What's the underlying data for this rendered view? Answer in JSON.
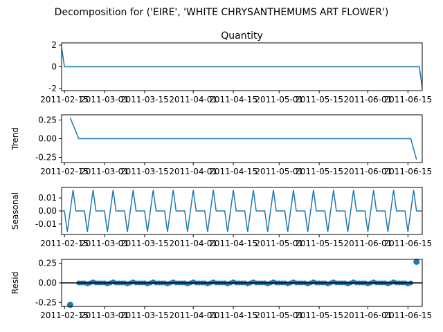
{
  "figure": {
    "suptitle": "Decomposition for ('EIRE', 'WHITE CHRYSANTHEMUMS ART FLOWER')"
  },
  "colors": {
    "line": "#1f77b4",
    "marker": "#1f77b4",
    "axis": "#000000",
    "zero_line": "#000000"
  },
  "chart_data": [
    {
      "name": "observed",
      "type": "line",
      "title": "Quantity",
      "ylabel": "",
      "ylim": [
        -2.2,
        2.2
      ],
      "yticks": [
        2,
        0,
        -2
      ],
      "xlim": [
        "2011-02-14",
        "2011-06-20"
      ],
      "xticks": [
        "2011-02-15",
        "2011-03-01",
        "2011-03-15",
        "2011-04-01",
        "2011-04-15",
        "2011-05-01",
        "2011-05-15",
        "2011-06-01",
        "2011-06-15"
      ],
      "xtick_labels": [
        "2011-02-15",
        "2011-03-01",
        "2011-03-15",
        "2011-04-01",
        "2011-04-15",
        "2011-05-01",
        "2011-05-15",
        "2011-06-01",
        "2011-06-15"
      ],
      "start": "2011-02-14",
      "end": "2011-06-20",
      "first": 1.8,
      "baseline": 0,
      "last": -2.0
    },
    {
      "name": "trend",
      "type": "line",
      "title": "",
      "ylabel": "Trend",
      "ylim": [
        -0.32,
        0.32
      ],
      "yticks": [
        0.25,
        0.0,
        -0.25
      ],
      "ytick_labels": [
        "0.25",
        "0.00",
        "-0.25"
      ],
      "xlim": [
        "2011-02-14",
        "2011-06-20"
      ],
      "xticks": [
        "2011-02-15",
        "2011-03-01",
        "2011-03-15",
        "2011-04-01",
        "2011-04-15",
        "2011-05-01",
        "2011-05-15",
        "2011-06-01",
        "2011-06-15"
      ],
      "xtick_labels": [
        "2011-02-15",
        "2011-03-01",
        "2011-03-15",
        "2011-04-01",
        "2011-04-15",
        "2011-05-01",
        "2011-05-15",
        "2011-06-01",
        "2011-06-15"
      ],
      "points": [
        {
          "x": "2011-02-17",
          "y": 0.28
        },
        {
          "x": "2011-02-20",
          "y": 0.0
        },
        {
          "x": "2011-06-16",
          "y": 0.0
        },
        {
          "x": "2011-06-18",
          "y": -0.28
        }
      ]
    },
    {
      "name": "seasonal",
      "type": "line",
      "title": "",
      "ylabel": "Seasonal",
      "ylim": [
        -0.018,
        0.018
      ],
      "yticks": [
        0.01,
        0.0,
        -0.01
      ],
      "ytick_labels": [
        "0.01",
        "0.00",
        "-0.01"
      ],
      "xlim": [
        "2011-02-14",
        "2011-06-20"
      ],
      "xticks": [
        "2011-02-15",
        "2011-03-01",
        "2011-03-15",
        "2011-04-01",
        "2011-04-15",
        "2011-05-01",
        "2011-05-15",
        "2011-06-01",
        "2011-06-15"
      ],
      "xtick_labels": [
        "2011-02-15",
        "2011-03-01",
        "2011-03-15",
        "2011-04-01",
        "2011-04-15",
        "2011-05-01",
        "2011-05-15",
        "2011-06-01",
        "2011-06-15"
      ],
      "start": "2011-02-14",
      "end": "2011-06-20",
      "period_values": [
        0.0,
        0.0,
        -0.016,
        0.0,
        0.016,
        0.0,
        0.0
      ]
    },
    {
      "name": "resid",
      "type": "scatter",
      "title": "",
      "ylabel": "Resid",
      "ylim": [
        -0.3,
        0.3
      ],
      "yticks": [
        0.25,
        0.0,
        -0.25
      ],
      "ytick_labels": [
        "0.25",
        "0.00",
        "-0.25"
      ],
      "xlim": [
        "2011-02-14",
        "2011-06-20"
      ],
      "xticks": [
        "2011-02-15",
        "2011-03-01",
        "2011-03-15",
        "2011-04-01",
        "2011-04-15",
        "2011-05-01",
        "2011-05-15",
        "2011-06-01",
        "2011-06-15"
      ],
      "xtick_labels": [
        "2011-02-15",
        "2011-03-01",
        "2011-03-15",
        "2011-04-01",
        "2011-04-15",
        "2011-05-01",
        "2011-05-15",
        "2011-06-01",
        "2011-06-15"
      ],
      "zero_line": 0,
      "points": [
        {
          "x": "2011-02-17",
          "y": -0.28
        },
        {
          "x": "2011-06-18",
          "y": 0.27
        }
      ],
      "small_residual_range": [
        "2011-02-20",
        "2011-06-16"
      ],
      "small_residual_pattern": [
        0.0,
        0.0,
        0.0,
        -0.012,
        0.0,
        0.012,
        0.0
      ]
    }
  ]
}
